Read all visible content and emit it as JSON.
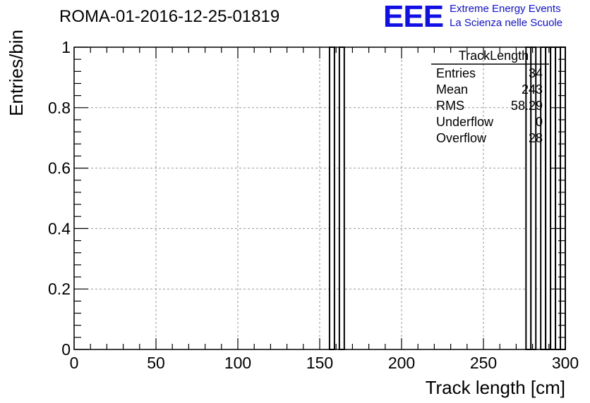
{
  "header": {
    "run_title": "ROMA-01-2016-12-25-01819",
    "logo_text": "EEE",
    "logo_line1": "Extreme Energy Events",
    "logo_line2": "La Scienza nelle Scuole",
    "logo_color": "#1010e6"
  },
  "stats_box": {
    "title": "TrackLength",
    "rows": [
      {
        "label": "Entries",
        "value": "34"
      },
      {
        "label": "Mean",
        "value": "243"
      },
      {
        "label": "RMS",
        "value": "58.29"
      },
      {
        "label": "Underflow",
        "value": "0"
      },
      {
        "label": "Overflow",
        "value": "28"
      }
    ]
  },
  "chart_data": {
    "type": "bar",
    "histogram": true,
    "xlabel": "Track length [cm]",
    "ylabel": "Entries/bin",
    "xlim": [
      0,
      300
    ],
    "ylim": [
      0,
      1
    ],
    "bin_width": 3,
    "x_ticks": [
      0,
      50,
      100,
      150,
      200,
      250,
      300
    ],
    "x_tick_labels": [
      "0",
      "50",
      "100",
      "150",
      "200",
      "250",
      "300"
    ],
    "y_ticks": [
      0,
      0.2,
      0.4,
      0.6,
      0.8,
      1
    ],
    "y_tick_labels": [
      "0",
      "0.2",
      "0.4",
      "0.6",
      "0.8",
      "1"
    ],
    "grid": true,
    "bins": [
      {
        "x0": 156,
        "x1": 159,
        "value": 1
      },
      {
        "x0": 162,
        "x1": 165,
        "value": 1
      },
      {
        "x0": 276,
        "x1": 279,
        "value": 1
      },
      {
        "x0": 279,
        "x1": 282,
        "value": 1
      },
      {
        "x0": 285,
        "x1": 288,
        "value": 1
      },
      {
        "x0": 288,
        "x1": 291,
        "value": 1
      },
      {
        "x0": 291,
        "x1": 294,
        "value": 1
      },
      {
        "x0": 294,
        "x1": 297,
        "value": 1
      },
      {
        "x0": 297,
        "x1": 300,
        "value": 1
      }
    ]
  }
}
